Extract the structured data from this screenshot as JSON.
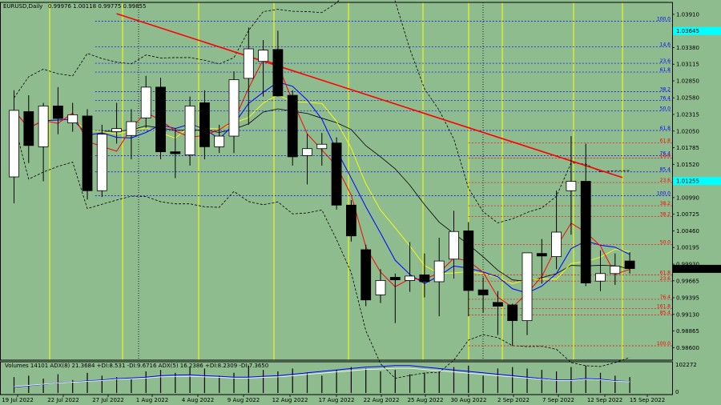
{
  "chart_data": {
    "type": "candlestick",
    "header": {
      "symbol": "EURUSD,Daily",
      "ohlc": "0.99976 1.00118 0.99775 0.99855"
    },
    "indicator_header": "Volumes 14101   ADX(8) 21.3684 +DI:8.531 -DI:9.6716   ADX(5) 16.2386 +DI:8.2309 -DI:7.3650",
    "indicator_max_label": "102272",
    "indicator_min_label": "0",
    "ylim": [
      0.984,
      1.041
    ],
    "y_ticks": [
      "1.03910",
      "1.03645",
      "1.03380",
      "1.03115",
      "1.02850",
      "1.02580",
      "1.02315",
      "1.02050",
      "1.01785",
      "1.01520",
      "1.01255",
      "1.00990",
      "1.00725",
      "1.00460",
      "1.00195",
      "0.99930",
      "0.99665",
      "0.99395",
      "0.99130",
      "0.98865",
      "0.98600"
    ],
    "x_ticks": [
      "19 Jul 2022",
      "22 Jul 2022",
      "27 Jul 2022",
      "1 Aug 2022",
      "4 Aug 2022",
      "9 Aug 2022",
      "12 Aug 2022",
      "17 Aug 2022",
      "22 Aug 2022",
      "25 Aug 2022",
      "30 Aug 2022",
      "2 Sep 2022",
      "7 Sep 2022",
      "12 Sep 2022",
      "15 Sep 2022"
    ],
    "current_price": "0.99855",
    "highlight_price": "1.01255",
    "highlight2_price": "1.03645",
    "colors": {
      "background": "#8fbc8f",
      "bull": "#ffffff",
      "bear": "#000000",
      "trendline": "#ff0000",
      "ma_fast": "#ff0000",
      "ma_mid": "#0000ff",
      "ma_slow": "#ffff00",
      "ma_long": "#000000",
      "bands": "#000000",
      "vline": "#ffff00",
      "fib_blue": "#0000ff",
      "fib_red": "#ff0000",
      "cyan": "#00ffff"
    },
    "candles": [
      {
        "o": 1.0132,
        "h": 1.027,
        "l": 1.009,
        "c": 1.0238
      },
      {
        "o": 1.0236,
        "h": 1.0262,
        "l": 1.0154,
        "c": 1.0182
      },
      {
        "o": 1.018,
        "h": 1.025,
        "l": 1.0125,
        "c": 1.0245
      },
      {
        "o": 1.0245,
        "h": 1.0275,
        "l": 1.02,
        "c": 1.0225
      },
      {
        "o": 1.0218,
        "h": 1.025,
        "l": 1.0204,
        "c": 1.0231
      },
      {
        "o": 1.0229,
        "h": 1.024,
        "l": 1.0096,
        "c": 1.011
      },
      {
        "o": 1.011,
        "h": 1.0215,
        "l": 1.01,
        "c": 1.02
      },
      {
        "o": 1.0204,
        "h": 1.025,
        "l": 1.0185,
        "c": 1.0209
      },
      {
        "o": 1.0198,
        "h": 1.024,
        "l": 1.016,
        "c": 1.022
      },
      {
        "o": 1.0226,
        "h": 1.0293,
        "l": 1.021,
        "c": 1.0275
      },
      {
        "o": 1.0275,
        "h": 1.029,
        "l": 1.016,
        "c": 1.0172
      },
      {
        "o": 1.0172,
        "h": 1.021,
        "l": 1.013,
        "c": 1.0169
      },
      {
        "o": 1.0167,
        "h": 1.026,
        "l": 1.015,
        "c": 1.0245
      },
      {
        "o": 1.025,
        "h": 1.027,
        "l": 1.016,
        "c": 1.018
      },
      {
        "o": 1.018,
        "h": 1.0215,
        "l": 1.017,
        "c": 1.0197
      },
      {
        "o": 1.0197,
        "h": 1.03,
        "l": 1.017,
        "c": 1.0287
      },
      {
        "o": 1.0289,
        "h": 1.037,
        "l": 1.0215,
        "c": 1.0336
      },
      {
        "o": 1.0316,
        "h": 1.035,
        "l": 1.026,
        "c": 1.0334
      },
      {
        "o": 1.0335,
        "h": 1.0365,
        "l": 1.026,
        "c": 1.0261
      },
      {
        "o": 1.0262,
        "h": 1.027,
        "l": 1.015,
        "c": 1.0164
      },
      {
        "o": 1.0166,
        "h": 1.02,
        "l": 1.012,
        "c": 1.0177
      },
      {
        "o": 1.0177,
        "h": 1.0202,
        "l": 1.015,
        "c": 1.0184
      },
      {
        "o": 1.0186,
        "h": 1.0195,
        "l": 1.008,
        "c": 1.0087
      },
      {
        "o": 1.0087,
        "h": 1.0095,
        "l": 1.0029,
        "c": 1.0038
      },
      {
        "o": 1.0016,
        "h": 1.0024,
        "l": 0.9926,
        "c": 0.9936
      },
      {
        "o": 0.9944,
        "h": 0.9985,
        "l": 0.9931,
        "c": 0.9967
      },
      {
        "o": 0.9972,
        "h": 0.9978,
        "l": 0.9899,
        "c": 0.9968
      },
      {
        "o": 0.9967,
        "h": 1.0028,
        "l": 0.9949,
        "c": 0.9974
      },
      {
        "o": 0.9976,
        "h": 1.001,
        "l": 0.994,
        "c": 0.9965
      },
      {
        "o": 0.9965,
        "h": 1.0035,
        "l": 0.991,
        "c": 0.9998
      },
      {
        "o": 1.0001,
        "h": 1.0078,
        "l": 0.997,
        "c": 1.0045
      },
      {
        "o": 1.0046,
        "h": 1.006,
        "l": 0.991,
        "c": 0.9951
      },
      {
        "o": 0.9952,
        "h": 0.9972,
        "l": 0.9916,
        "c": 0.9944
      },
      {
        "o": 0.9932,
        "h": 0.995,
        "l": 0.988,
        "c": 0.9926
      },
      {
        "o": 0.9928,
        "h": 0.993,
        "l": 0.9863,
        "c": 0.9903
      },
      {
        "o": 0.9903,
        "h": 1.001,
        "l": 0.988,
        "c": 1.0011
      },
      {
        "o": 1.001,
        "h": 1.0033,
        "l": 0.9962,
        "c": 1.0006
      },
      {
        "o": 1.0005,
        "h": 1.011,
        "l": 0.9985,
        "c": 1.0044
      },
      {
        "o": 1.011,
        "h": 1.0197,
        "l": 1.004,
        "c": 1.0125
      },
      {
        "o": 1.0125,
        "h": 1.0185,
        "l": 0.9958,
        "c": 0.9963
      },
      {
        "o": 0.9966,
        "h": 1.0015,
        "l": 0.995,
        "c": 0.9978
      },
      {
        "o": 0.9978,
        "h": 1.001,
        "l": 0.996,
        "c": 0.999
      },
      {
        "o": 0.9998,
        "h": 1.0012,
        "l": 0.9978,
        "c": 0.9986
      }
    ],
    "trendline": {
      "from_bar": 7,
      "from_price": 1.0392,
      "to_bar": 41.5,
      "to_price": 1.0131
    },
    "fib_blue": {
      "x_from_bar": 11,
      "levels": [
        {
          "label": "100.0",
          "price": 1.038
        },
        {
          "label": "14.6",
          "price": 1.0339
        },
        {
          "label": "23.6",
          "price": 1.0313
        },
        {
          "label": "61.8",
          "price": 1.0299
        },
        {
          "label": "38.2",
          "price": 1.0268
        },
        {
          "label": "76.4",
          "price": 1.0254
        },
        {
          "label": "50.0",
          "price": 1.0237
        },
        {
          "label": "61.8",
          "price": 1.0206
        },
        {
          "label": "76.4",
          "price": 1.0166
        },
        {
          "label": "85.4",
          "price": 1.014
        },
        {
          "label": "100.0",
          "price": 1.0102
        }
      ]
    },
    "fib_red": {
      "x_from_bar": 31,
      "levels": [
        {
          "label": "61.8",
          "price": 1.0186
        },
        {
          "label": "14.6",
          "price": 1.0162
        },
        {
          "label": "23.6",
          "price": 1.0123
        },
        {
          "label": "38.2",
          "price": 1.0069
        },
        {
          "label": "38.2",
          "price": 1.0086
        },
        {
          "label": "50.0",
          "price": 1.0024
        },
        {
          "label": "61.8",
          "price": 0.9976
        },
        {
          "label": "23.6",
          "price": 0.9966
        },
        {
          "label": "76.4",
          "price": 0.9937
        },
        {
          "label": "161.8",
          "price": 0.9922
        },
        {
          "label": "85.4",
          "price": 0.9912
        },
        {
          "label": "100.0",
          "price": 0.9863
        }
      ]
    }
  }
}
